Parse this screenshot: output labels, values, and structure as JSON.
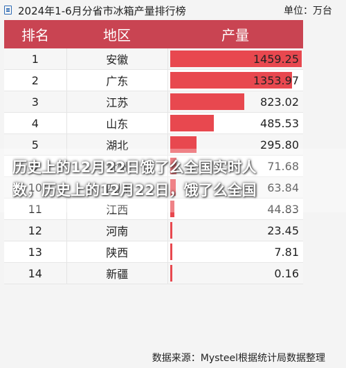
{
  "header": {
    "title": "2024年1-6月分省市冰箱产量排行榜",
    "unit": "单位：万台"
  },
  "table_headers": {
    "rank": "排名",
    "region": "地区",
    "value": "产量"
  },
  "colors": {
    "header_bg": "#c94452",
    "bar": "#e8484f"
  },
  "chart_data": {
    "type": "bar",
    "title": "2024年1-6月分省市冰箱产量排行榜",
    "ylabel": "产量",
    "unit": "万台",
    "ylim": [
      0,
      1459.25
    ],
    "rows": [
      {
        "rank": "1",
        "region": "安徽",
        "value": 1459.25,
        "label": "1459.25"
      },
      {
        "rank": "2",
        "region": "广东",
        "value": 1353.97,
        "label": "1353.97"
      },
      {
        "rank": "3",
        "region": "江苏",
        "value": 823.02,
        "label": "823.02"
      },
      {
        "rank": "4",
        "region": "山东",
        "value": 485.53,
        "label": "485.53"
      },
      {
        "rank": "5",
        "region": "湖北",
        "value": 295.8,
        "label": "295.80"
      },
      {
        "rank": "9",
        "region": "贵州",
        "value": 71.68,
        "label": "71.68"
      },
      {
        "rank": "10",
        "region": "四川",
        "value": 63.84,
        "label": "63.84"
      },
      {
        "rank": "11",
        "region": "江西",
        "value": 44.83,
        "label": "44.83"
      },
      {
        "rank": "12",
        "region": "河南",
        "value": 23.45,
        "label": "23.45"
      },
      {
        "rank": "13",
        "region": "陕西",
        "value": 7.81,
        "label": "7.81"
      },
      {
        "rank": "14",
        "region": "新疆",
        "value": 0.16,
        "label": "0.16"
      }
    ]
  },
  "overlay": {
    "line1": "历史上的12月22日饿了么全国实时人",
    "line2": "数，历史上的12月22日，饿了么全国"
  },
  "source": "数据来源：Mysteel根据统计局数据整理"
}
